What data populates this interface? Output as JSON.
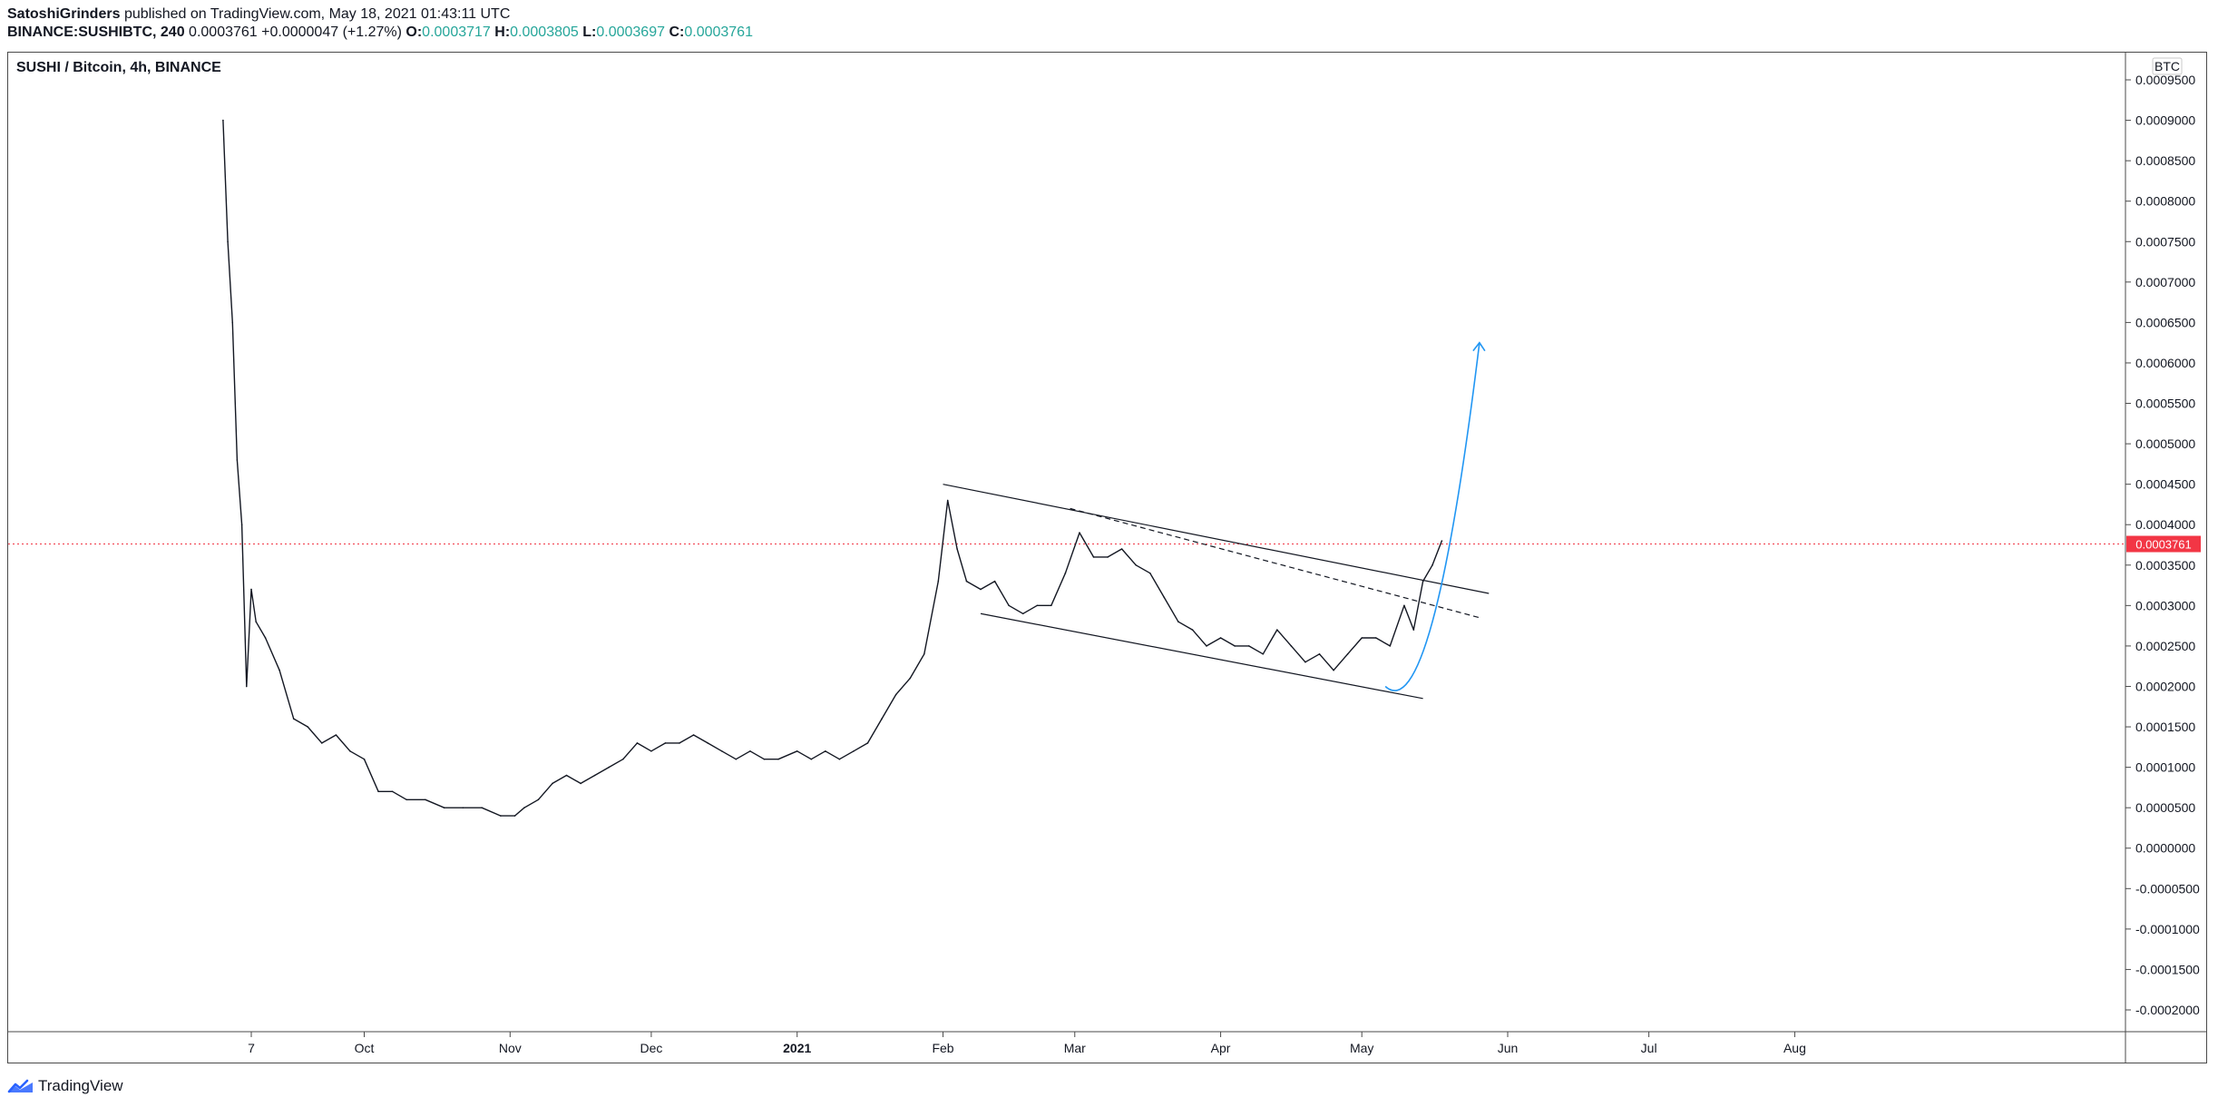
{
  "header": {
    "author": "SatoshiGrinders",
    "published_text": "published on TradingView.com, May 18, 2021 01:43:11 UTC",
    "symbol": "BINANCE:SUSHIBTC, 240",
    "price": "0.0003761",
    "change": "+0.0000047 (+1.27%)",
    "o_label": "O:",
    "o_value": "0.0003717",
    "h_label": "H:",
    "h_value": "0.0003805",
    "l_label": "L:",
    "l_value": "0.0003697",
    "c_label": "C:",
    "c_value": "0.0003761"
  },
  "pane_title": "SUSHI / Bitcoin, 4h, BINANCE",
  "currency_badge": "BTC",
  "last_price_label": "0.0003761",
  "footer": {
    "brand": "TradingView",
    "logo_icon": "tradingview-logo-icon"
  },
  "colors": {
    "price_tag": "#f23645",
    "arrow": "#2196f3",
    "ohlc": "#26a69a"
  },
  "chart_data": {
    "type": "line",
    "title": "SUSHI / Bitcoin, 4h, BINANCE",
    "y_scale": "linear",
    "ylim": [
      -0.000225,
      0.000975
    ],
    "y_ticks": [
      "0.0009500",
      "0.0009000",
      "0.0008500",
      "0.0008000",
      "0.0007500",
      "0.0007000",
      "0.0006500",
      "0.0006000",
      "0.0005500",
      "0.0005000",
      "0.0004500",
      "0.0004000",
      "0.0003500",
      "0.0003000",
      "0.0002500",
      "0.0002000",
      "0.0001500",
      "0.0001000",
      "0.0000500",
      "0.0000000",
      "-0.0000500",
      "-0.0001000",
      "-0.0001500",
      "-0.0002000"
    ],
    "x_ticks": [
      {
        "label": "7",
        "date": "2020-09-07",
        "bold": false
      },
      {
        "label": "Oct",
        "date": "2020-10-01",
        "bold": false
      },
      {
        "label": "Nov",
        "date": "2020-11-01",
        "bold": false
      },
      {
        "label": "Dec",
        "date": "2020-12-01",
        "bold": false
      },
      {
        "label": "2021",
        "date": "2021-01-01",
        "bold": true
      },
      {
        "label": "Feb",
        "date": "2021-02-01",
        "bold": false
      },
      {
        "label": "Mar",
        "date": "2021-03-01",
        "bold": false
      },
      {
        "label": "Apr",
        "date": "2021-04-01",
        "bold": false
      },
      {
        "label": "May",
        "date": "2021-05-01",
        "bold": false
      },
      {
        "label": "Jun",
        "date": "2021-06-01",
        "bold": false
      },
      {
        "label": "Jul",
        "date": "2021-07-01",
        "bold": false
      },
      {
        "label": "Aug",
        "date": "2021-08-01",
        "bold": false
      }
    ],
    "last_price": 0.0003761,
    "series": [
      {
        "x": [
          "2020-09-01",
          "2020-09-02",
          "2020-09-03",
          "2020-09-04",
          "2020-09-05",
          "2020-09-06",
          "2020-09-07",
          "2020-09-08",
          "2020-09-10",
          "2020-09-13",
          "2020-09-16",
          "2020-09-19",
          "2020-09-22",
          "2020-09-25",
          "2020-09-28",
          "2020-10-01",
          "2020-10-04",
          "2020-10-07",
          "2020-10-10",
          "2020-10-14",
          "2020-10-18",
          "2020-10-22",
          "2020-10-26",
          "2020-10-30",
          "2020-11-02",
          "2020-11-04",
          "2020-11-07",
          "2020-11-10",
          "2020-11-13",
          "2020-11-16",
          "2020-11-19",
          "2020-11-22",
          "2020-11-25",
          "2020-11-28",
          "2020-12-01",
          "2020-12-04",
          "2020-12-07",
          "2020-12-10",
          "2020-12-13",
          "2020-12-16",
          "2020-12-19",
          "2020-12-22",
          "2020-12-25",
          "2020-12-28",
          "2021-01-01",
          "2021-01-04",
          "2021-01-07",
          "2021-01-10",
          "2021-01-13",
          "2021-01-16",
          "2021-01-19",
          "2021-01-22",
          "2021-01-25",
          "2021-01-28",
          "2021-01-31",
          "2021-02-02",
          "2021-02-04",
          "2021-02-06",
          "2021-02-09",
          "2021-02-12",
          "2021-02-15",
          "2021-02-18",
          "2021-02-21",
          "2021-02-24",
          "2021-02-27",
          "2021-03-02",
          "2021-03-05",
          "2021-03-08",
          "2021-03-11",
          "2021-03-14",
          "2021-03-17",
          "2021-03-20",
          "2021-03-23",
          "2021-03-26",
          "2021-03-29",
          "2021-04-01",
          "2021-04-04",
          "2021-04-07",
          "2021-04-10",
          "2021-04-13",
          "2021-04-16",
          "2021-04-19",
          "2021-04-22",
          "2021-04-25",
          "2021-04-28",
          "2021-05-01",
          "2021-05-04",
          "2021-05-07",
          "2021-05-10",
          "2021-05-12",
          "2021-05-14",
          "2021-05-16",
          "2021-05-18"
        ],
        "y": [
          0.0009,
          0.00075,
          0.00065,
          0.00048,
          0.0004,
          0.0002,
          0.00032,
          0.00028,
          0.00026,
          0.00022,
          0.00016,
          0.00015,
          0.00013,
          0.00014,
          0.00012,
          0.00011,
          7e-05,
          7e-05,
          6e-05,
          6e-05,
          5e-05,
          5e-05,
          5e-05,
          4e-05,
          4e-05,
          5e-05,
          6e-05,
          8e-05,
          9e-05,
          8e-05,
          9e-05,
          0.0001,
          0.00011,
          0.00013,
          0.00012,
          0.00013,
          0.00013,
          0.00014,
          0.00013,
          0.00012,
          0.00011,
          0.00012,
          0.00011,
          0.00011,
          0.00012,
          0.00011,
          0.00012,
          0.00011,
          0.00012,
          0.00013,
          0.00016,
          0.00019,
          0.00021,
          0.00024,
          0.00033,
          0.00043,
          0.00037,
          0.00033,
          0.00032,
          0.00033,
          0.0003,
          0.00029,
          0.0003,
          0.0003,
          0.00034,
          0.00039,
          0.00036,
          0.00036,
          0.00037,
          0.00035,
          0.00034,
          0.00031,
          0.00028,
          0.00027,
          0.00025,
          0.00026,
          0.00025,
          0.00025,
          0.00024,
          0.00027,
          0.00025,
          0.00023,
          0.00024,
          0.00022,
          0.00024,
          0.00026,
          0.00026,
          0.00025,
          0.0003,
          0.00027,
          0.00033,
          0.00035,
          0.00038
        ]
      }
    ],
    "drawings": [
      {
        "kind": "trendline",
        "style": "solid",
        "x": [
          "2021-02-01",
          "2021-05-28"
        ],
        "y": [
          0.00045,
          0.000315
        ]
      },
      {
        "kind": "trendline",
        "style": "solid",
        "x": [
          "2021-02-09",
          "2021-05-14"
        ],
        "y": [
          0.00029,
          0.000185
        ]
      },
      {
        "kind": "trendline",
        "style": "dashed",
        "x": [
          "2021-02-28",
          "2021-05-26"
        ],
        "y": [
          0.00042,
          0.000285
        ]
      },
      {
        "kind": "curved-arrow",
        "x": [
          "2021-05-06",
          "2021-05-16",
          "2021-05-26"
        ],
        "y": [
          0.0002,
          0.00028,
          0.000625
        ]
      }
    ]
  }
}
